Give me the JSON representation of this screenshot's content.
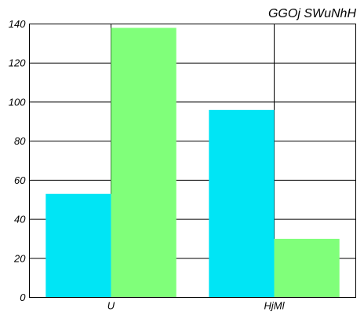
{
  "chart_data": {
    "type": "bar",
    "title": "GGOj SWuNhH",
    "categories": [
      "U",
      "HjMl"
    ],
    "series": [
      {
        "color": "#00e5f5",
        "values": [
          53,
          96
        ]
      },
      {
        "color": "#80ff7a",
        "values": [
          138,
          30
        ]
      }
    ],
    "ylim": [
      0,
      140
    ],
    "yticks": [
      0,
      20,
      40,
      60,
      80,
      100,
      120,
      140
    ],
    "grid": true
  }
}
